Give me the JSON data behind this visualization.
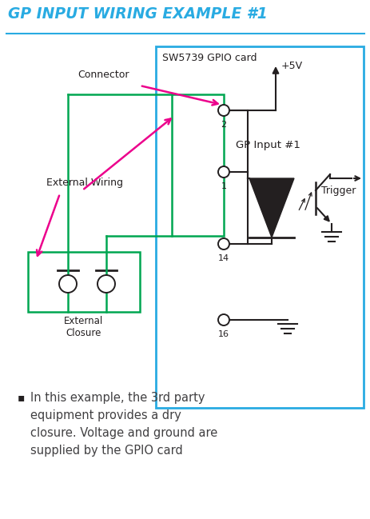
{
  "title": "GP INPUT WIRING EXAMPLE #1",
  "title_color": "#29ABE2",
  "bg_color": "#FFFFFF",
  "cyan_color": "#29ABE2",
  "green_color": "#00A651",
  "black_color": "#231F20",
  "magenta_color": "#EC008C",
  "dark_gray": "#414042",
  "sw5739_label": "SW5739 GPIO card",
  "plus5v_label": "+5V",
  "gp_input_label": "GP Input #1",
  "trigger_label": "Trigger",
  "connector_label": "Connector",
  "ext_wiring_label": "External Wiring",
  "ext_closure_label": "External\nClosure",
  "bullet_text_line1": "In this example, the 3rd party",
  "bullet_text_line2": "equipment provides a dry",
  "bullet_text_line3": "closure. Voltage and ground are",
  "bullet_text_line4": "supplied by the GPIO card",
  "fig_w": 4.64,
  "fig_h": 6.49,
  "dpi": 100
}
